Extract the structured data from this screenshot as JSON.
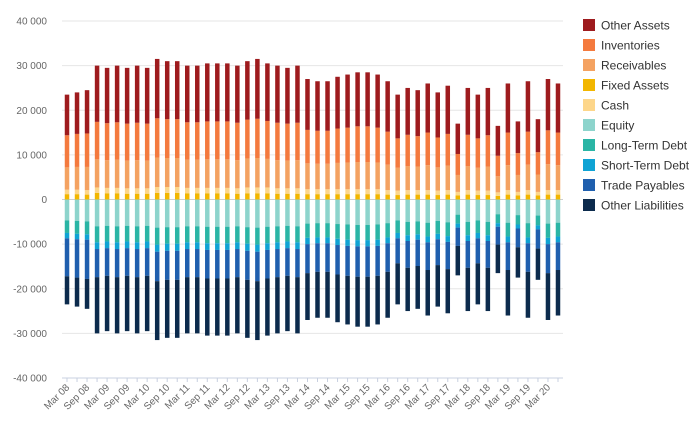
{
  "chart_data": {
    "type": "bar",
    "stacked": true,
    "title": "",
    "xlabel": "",
    "ylabel": "",
    "ylim": [
      -40000,
      40000
    ],
    "yticks": [
      40000,
      30000,
      20000,
      10000,
      0,
      -10000,
      -20000,
      -30000,
      -40000
    ],
    "ytick_labels": [
      "40 000",
      "30 000",
      "20 000",
      "10 000",
      "0",
      "-10 000",
      "-20 000",
      "-30 000",
      "-40 000"
    ],
    "legend_position": "right",
    "categories": [
      "Mar 08",
      "Jun 08",
      "Sep 08",
      "Dec 08",
      "Mar 09",
      "Jun 09",
      "Sep 09",
      "Dec 09",
      "Mar 10",
      "Jun 10",
      "Sep 10",
      "Dec 10",
      "Mar 11",
      "Jun 11",
      "Sep 11",
      "Dec 11",
      "Mar 12",
      "Jun 12",
      "Sep 12",
      "Dec 12",
      "Mar 13",
      "Jun 13",
      "Sep 13",
      "Dec 13",
      "Mar 14",
      "Jun 14",
      "Sep 14",
      "Dec 14",
      "Mar 15",
      "Jun 15",
      "Sep 15",
      "Dec 15",
      "Mar 16",
      "Jun 16",
      "Sep 16",
      "Dec 16",
      "Mar 17",
      "Jun 17",
      "Sep 17",
      "Dec 17",
      "Mar 18",
      "Jun 18",
      "Sep 18",
      "Dec 18",
      "Mar 19",
      "Jun 19",
      "Sep 19",
      "Dec 19",
      "Mar 20",
      "Jun 20"
    ],
    "xtick_labels": [
      "Mar 08",
      "Sep 08",
      "Mar 09",
      "Sep 09",
      "Mar 10",
      "Sep 10",
      "Mar 11",
      "Sep 11",
      "Mar 12",
      "Sep 12",
      "Mar 13",
      "Sep 13",
      "Mar 14",
      "Sep 14",
      "Mar 15",
      "Sep 15",
      "Mar 16",
      "Sep 16",
      "Mar 17",
      "Sep 17",
      "Mar 18",
      "Sep 18",
      "Mar 19",
      "Sep 19",
      "Mar 20"
    ],
    "asset_totals": [
      23500,
      24000,
      24500,
      30000,
      29500,
      30000,
      29500,
      30000,
      29500,
      31500,
      31000,
      31000,
      30000,
      30000,
      30500,
      30500,
      30500,
      30000,
      31000,
      31500,
      30500,
      30000,
      29500,
      30000,
      27000,
      26500,
      26500,
      27500,
      28000,
      28500,
      28500,
      28000,
      26500,
      23500,
      25000,
      24500,
      26000,
      24000,
      25500,
      17000,
      25000,
      23500,
      25000,
      16500,
      26000,
      17500,
      26500,
      18000,
      27000,
      26000
    ],
    "asset_series": [
      {
        "name": "Fixed Assets",
        "color": "#f2b600",
        "values": [
          1200,
          1200,
          1100,
          1500,
          1400,
          1400,
          1300,
          1300,
          1300,
          1500,
          1500,
          1500,
          1400,
          1400,
          1400,
          1400,
          1400,
          1300,
          1400,
          1400,
          1400,
          1300,
          1300,
          1300,
          1200,
          1200,
          1200,
          1200,
          1200,
          1200,
          1200,
          1200,
          1100,
          1000,
          1100,
          1100,
          1100,
          1000,
          1100,
          900,
          1100,
          1000,
          1000,
          800,
          1100,
          900,
          1100,
          900,
          1100,
          1100
        ]
      },
      {
        "name": "Cash",
        "color": "#fdd68a",
        "values": [
          1000,
          1000,
          1000,
          1200,
          1200,
          1200,
          1200,
          1200,
          1200,
          1300,
          1300,
          1300,
          1200,
          1200,
          1200,
          1200,
          1200,
          1200,
          1300,
          1300,
          1300,
          1200,
          1200,
          1200,
          1100,
          1100,
          1100,
          1100,
          1100,
          1100,
          1100,
          1100,
          1000,
          1000,
          1000,
          1000,
          1000,
          1000,
          1000,
          800,
          1000,
          1000,
          1000,
          800,
          1000,
          800,
          1000,
          800,
          1000,
          1000
        ]
      },
      {
        "name": "Receivables",
        "color": "#f4a261",
        "values": [
          5000,
          5100,
          5200,
          6300,
          6200,
          6300,
          6200,
          6300,
          6200,
          6600,
          6500,
          6500,
          6300,
          6300,
          6400,
          6400,
          6400,
          6300,
          6500,
          6600,
          6400,
          6300,
          6200,
          6300,
          5800,
          5700,
          5700,
          5900,
          6000,
          6100,
          6100,
          6000,
          5700,
          5100,
          5400,
          5300,
          5600,
          5200,
          5500,
          3800,
          5400,
          5100,
          5400,
          3600,
          5600,
          3800,
          5700,
          3900,
          5800,
          5600
        ]
      },
      {
        "name": "Inventories",
        "color": "#f47a3e",
        "values": [
          7200,
          7400,
          7500,
          8400,
          8300,
          8400,
          8300,
          8400,
          8300,
          8800,
          8700,
          8700,
          8400,
          8400,
          8500,
          8500,
          8500,
          8400,
          8700,
          8800,
          8500,
          8400,
          8300,
          8400,
          7500,
          7400,
          7400,
          7700,
          7800,
          8000,
          8000,
          7800,
          7400,
          6600,
          7000,
          6800,
          7300,
          6700,
          7100,
          4700,
          7000,
          6600,
          7000,
          4600,
          7300,
          4900,
          7400,
          5000,
          7600,
          7300
        ]
      },
      {
        "name": "Other Assets",
        "color": "#9e1b1e",
        "values": [
          9100,
          9300,
          9700,
          12600,
          12400,
          12700,
          12500,
          12800,
          12500,
          13300,
          13000,
          13000,
          12700,
          12700,
          13000,
          13000,
          13000,
          12800,
          13100,
          13400,
          12900,
          12800,
          12500,
          12800,
          11400,
          11100,
          11100,
          11600,
          11900,
          12100,
          12100,
          11900,
          11300,
          9800,
          10500,
          10300,
          11000,
          10100,
          10800,
          6800,
          10500,
          9800,
          10600,
          6700,
          11000,
          7100,
          11300,
          7400,
          11500,
          11000
        ]
      }
    ],
    "liability_series": [
      {
        "name": "Equity",
        "color": "#8dd4cc",
        "values": [
          -4700,
          -4800,
          -4900,
          -6000,
          -5900,
          -6000,
          -5900,
          -6000,
          -5900,
          -6300,
          -6200,
          -6200,
          -6000,
          -6000,
          -6100,
          -6100,
          -6100,
          -6000,
          -6200,
          -6300,
          -6100,
          -6000,
          -5900,
          -6000,
          -5400,
          -5300,
          -5300,
          -5500,
          -5600,
          -5700,
          -5700,
          -5600,
          -5300,
          -4700,
          -5000,
          -4900,
          -5200,
          -4800,
          -5100,
          -3400,
          -5000,
          -4700,
          -5000,
          -3300,
          -5200,
          -3500,
          -5300,
          -3600,
          -5400,
          -5200
        ]
      },
      {
        "name": "Long-Term Debt",
        "color": "#2ab5a5",
        "values": [
          -2800,
          -2900,
          -2900,
          -3600,
          -3500,
          -3600,
          -3500,
          -3600,
          -3500,
          -3800,
          -3700,
          -3700,
          -3600,
          -3600,
          -3700,
          -3700,
          -3700,
          -3600,
          -3700,
          -3800,
          -3700,
          -3600,
          -3500,
          -3600,
          -3200,
          -3200,
          -3200,
          -3300,
          -3400,
          -3400,
          -3400,
          -3400,
          -3200,
          -2800,
          -3000,
          -2900,
          -3100,
          -2900,
          -3100,
          -2000,
          -3000,
          -2800,
          -3000,
          -2000,
          -3100,
          -2100,
          -3200,
          -2200,
          -3200,
          -3100
        ]
      },
      {
        "name": "Short-Term Debt",
        "color": "#0fa3d4",
        "values": [
          -1200,
          -1200,
          -1200,
          -1500,
          -1500,
          -1500,
          -1500,
          -1500,
          -1500,
          -1600,
          -1600,
          -1600,
          -1500,
          -1500,
          -1500,
          -1500,
          -1500,
          -1500,
          -1600,
          -1600,
          -1500,
          -1500,
          -1500,
          -1500,
          -1400,
          -1300,
          -1300,
          -1400,
          -1400,
          -1400,
          -1400,
          -1400,
          -1300,
          -1200,
          -1300,
          -1200,
          -1300,
          -1200,
          -1300,
          -900,
          -1300,
          -1200,
          -1300,
          -800,
          -1300,
          -900,
          -1300,
          -900,
          -1400,
          -1300
        ]
      },
      {
        "name": "Trade Payables",
        "color": "#1f5fae",
        "values": [
          -8500,
          -8600,
          -8800,
          -6300,
          -6200,
          -6300,
          -6200,
          -6300,
          -6200,
          -6600,
          -6500,
          -6500,
          -6300,
          -6300,
          -6400,
          -6400,
          -6400,
          -6300,
          -6500,
          -6600,
          -6400,
          -6300,
          -6200,
          -6300,
          -6500,
          -6400,
          -6400,
          -6600,
          -6700,
          -6800,
          -6800,
          -6700,
          -6400,
          -5600,
          -6000,
          -5900,
          -6200,
          -5800,
          -6100,
          -4100,
          -6000,
          -5600,
          -6000,
          -4000,
          -6200,
          -4200,
          -6400,
          -4300,
          -6500,
          -6200
        ]
      },
      {
        "name": "Other Liabilities",
        "color": "#0c2b4d",
        "values": [
          -6300,
          -6500,
          -6700,
          -12600,
          -12400,
          -12600,
          -12400,
          -12600,
          -12400,
          -13200,
          -13000,
          -13000,
          -12600,
          -12600,
          -12800,
          -12800,
          -12800,
          -12600,
          -13000,
          -13200,
          -12800,
          -12600,
          -12400,
          -12600,
          -10500,
          -10300,
          -10300,
          -10700,
          -10900,
          -11200,
          -11200,
          -10900,
          -10300,
          -9200,
          -9700,
          -9600,
          -10200,
          -9300,
          -9900,
          -6600,
          -9700,
          -9200,
          -9700,
          -6400,
          -10200,
          -6800,
          -10300,
          -7000,
          -10500,
          -10200
        ]
      }
    ],
    "legend": [
      {
        "name": "Other Assets",
        "color": "#9e1b1e"
      },
      {
        "name": "Inventories",
        "color": "#f47a3e"
      },
      {
        "name": "Receivables",
        "color": "#f4a261"
      },
      {
        "name": "Fixed Assets",
        "color": "#f2b600"
      },
      {
        "name": "Cash",
        "color": "#fdd68a"
      },
      {
        "name": "Equity",
        "color": "#8dd4cc"
      },
      {
        "name": "Long-Term Debt",
        "color": "#2ab5a5"
      },
      {
        "name": "Short-Term Debt",
        "color": "#0fa3d4"
      },
      {
        "name": "Trade Payables",
        "color": "#1f5fae"
      },
      {
        "name": "Other Liabilities",
        "color": "#0c2b4d"
      }
    ],
    "grid": {
      "horizontal": true,
      "color": "#e6e6e6"
    }
  }
}
